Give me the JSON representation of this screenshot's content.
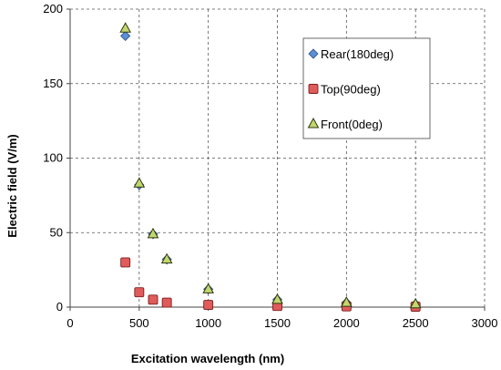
{
  "chart_data": {
    "type": "scatter",
    "title": "",
    "xlabel": "Excitation wavelength (nm)",
    "ylabel": "Electric field (V/m)",
    "xlim": [
      0,
      3000
    ],
    "ylim": [
      0,
      200
    ],
    "xticks": [
      0,
      500,
      1000,
      1500,
      2000,
      2500,
      3000
    ],
    "yticks": [
      0,
      50,
      100,
      150,
      200
    ],
    "xtick_labels": [
      "0",
      "500",
      "1000",
      "1500",
      "2000",
      "2500",
      "3000"
    ],
    "ytick_labels": [
      "0",
      "50",
      "100",
      "150",
      "200"
    ],
    "grid": true,
    "legend_position": "top-right",
    "series": [
      {
        "name": "Rear(180deg)",
        "marker": "diamond",
        "color": "#5b8fd6",
        "x": [
          400,
          500,
          600,
          700,
          1000,
          1500,
          2000,
          2500
        ],
        "y": [
          182,
          82,
          49,
          32,
          12,
          5,
          3,
          2
        ]
      },
      {
        "name": "Top(90deg)",
        "marker": "square",
        "color": "#e05b5b",
        "x": [
          400,
          500,
          600,
          700,
          1000,
          1500,
          2000,
          2500
        ],
        "y": [
          30,
          10,
          5,
          3,
          1.5,
          0.8,
          0.5,
          0.3
        ]
      },
      {
        "name": "Front(0deg)",
        "marker": "triangle",
        "color": "#c4d66e",
        "x": [
          400,
          500,
          600,
          700,
          1000,
          1500,
          2000,
          2500
        ],
        "y": [
          187,
          83,
          49,
          32,
          12,
          5,
          3,
          2
        ]
      }
    ]
  }
}
